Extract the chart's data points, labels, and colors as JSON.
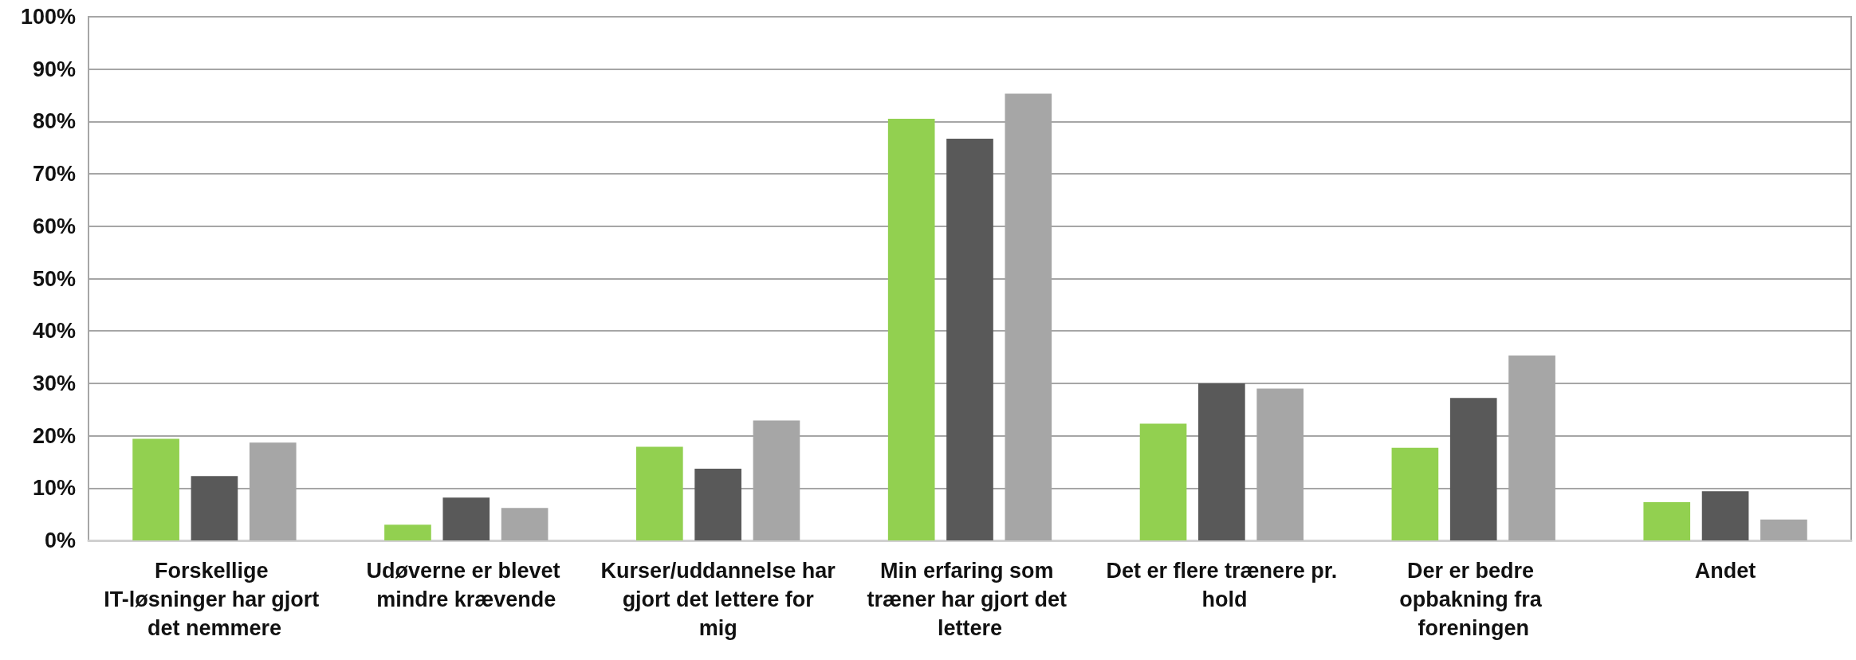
{
  "chart_data": {
    "type": "bar",
    "categories": [
      "Forskellige IT-løsninger har gjort det nemmere",
      "Udøverne er blevet mindre krævende",
      "Kurser/uddannelse har gjort det lettere for mig",
      "Min erfaring som træner har gjort det lettere",
      "Det er flere trænere pr. hold",
      "Der er bedre opbakning fra foreningen",
      "Andet"
    ],
    "series": [
      {
        "color": "#92d050",
        "values": [
          19.4,
          3.0,
          17.9,
          80.5,
          22.3,
          17.7,
          7.3
        ]
      },
      {
        "color": "#595959",
        "values": [
          12.3,
          8.2,
          13.7,
          76.7,
          30.0,
          27.2,
          9.4
        ]
      },
      {
        "color": "#a6a6a6",
        "values": [
          18.7,
          6.2,
          22.9,
          85.3,
          29.0,
          35.3,
          4.0
        ]
      }
    ],
    "ylim": [
      0,
      100
    ],
    "yticks": [
      {
        "value": 0,
        "label": "0%"
      },
      {
        "value": 10,
        "label": "10%"
      },
      {
        "value": 20,
        "label": "20%"
      },
      {
        "value": 30,
        "label": "30%"
      },
      {
        "value": 40,
        "label": "40%"
      },
      {
        "value": 50,
        "label": "50%"
      },
      {
        "value": 60,
        "label": "60%"
      },
      {
        "value": 70,
        "label": "70%"
      },
      {
        "value": 80,
        "label": "80%"
      },
      {
        "value": 90,
        "label": "90%"
      },
      {
        "value": 100,
        "label": "100%"
      }
    ],
    "grid": "y"
  }
}
